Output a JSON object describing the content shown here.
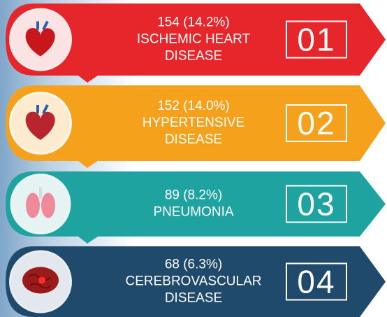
{
  "items": [
    {
      "stat": "154 (14.2%)",
      "label_lines": [
        "ISCHEMIC  HEART",
        "DISEASE"
      ],
      "rank": "01"
    },
    {
      "stat": "152 (14.0%)",
      "label_lines": [
        "HYPERTENSIVE",
        "DISEASE"
      ],
      "rank": "02"
    },
    {
      "stat": "89 (8.2%)",
      "label_lines": [
        "PNEUMONIA"
      ],
      "rank": "03"
    },
    {
      "stat": "68 (6.3%)",
      "label_lines": [
        "CEREBROVASCULAR",
        "DISEASE"
      ],
      "rank": "04"
    }
  ]
}
